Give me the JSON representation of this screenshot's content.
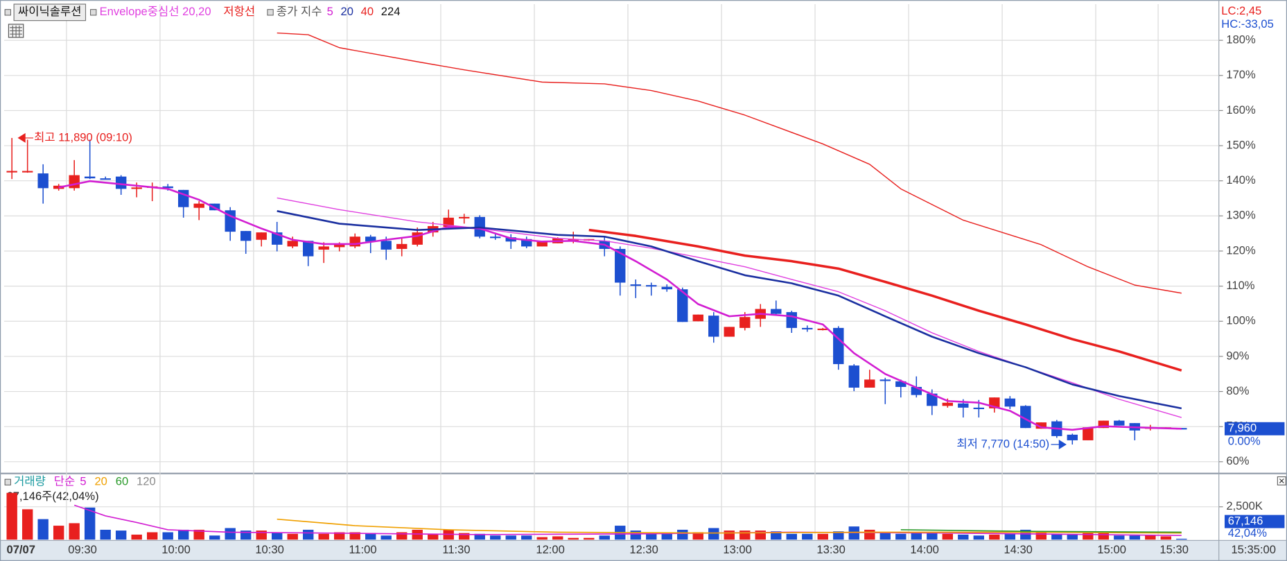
{
  "chart_data": [
    {
      "type": "candlestick",
      "title": "싸이닉솔루션",
      "ma_legend_label": "종가 지수",
      "lc_label": "LC:2,45",
      "hc_label": "HC:-33,05",
      "last_price_label": "7,960",
      "last_change_label": "0.00%",
      "last_time": "15:35:00",
      "up_color": "#e8201e",
      "down_color": "#1c4fd0",
      "grid": true,
      "categories": [
        "07/07",
        null,
        null,
        null,
        "09:30",
        null,
        null,
        null,
        null,
        null,
        "10:00",
        null,
        null,
        null,
        null,
        null,
        "10:30",
        null,
        null,
        null,
        null,
        null,
        "11:00",
        null,
        null,
        null,
        null,
        null,
        "11:30",
        null,
        null,
        null,
        null,
        null,
        "12:00",
        null,
        null,
        null,
        null,
        null,
        "12:30",
        null,
        null,
        null,
        null,
        null,
        "13:00",
        null,
        null,
        null,
        null,
        null,
        "13:30",
        null,
        null,
        null,
        null,
        null,
        "14:00",
        null,
        null,
        null,
        null,
        null,
        "14:30",
        null,
        null,
        null,
        null,
        null,
        "15:00",
        null,
        null,
        null,
        "15:30",
        null
      ],
      "open": [
        142.8,
        142.8,
        142.1,
        137.7,
        137.9,
        141.2,
        140.7,
        141.2,
        137.9,
        138.1,
        138.4,
        137.4,
        132.3,
        133.5,
        131.6,
        125.7,
        123.2,
        125.3,
        121.3,
        122.9,
        120.4,
        121.1,
        121.3,
        124.1,
        122.9,
        120.6,
        121.8,
        125.3,
        126.9,
        129.5,
        129.7,
        124.1,
        123.9,
        123.4,
        121.3,
        122.2,
        123.2,
        123.2,
        122.9,
        120.6,
        110.5,
        110.3,
        109.8,
        109.1,
        100.0,
        101.6,
        95.6,
        98.1,
        100.7,
        103.5,
        102.6,
        98.1,
        97.7,
        98.1,
        87.4,
        81.1,
        83.4,
        82.9,
        81.3,
        79.4,
        75.9,
        76.6,
        75.4,
        75.2,
        78.0,
        75.9,
        69.4,
        71.5,
        67.7,
        66.1,
        69.6,
        71.7,
        71.0,
        69.6,
        69.6,
        69.6
      ],
      "high": [
        152.2,
        151.7,
        144.7,
        139.1,
        145.9,
        151.7,
        141.2,
        141.6,
        139.5,
        139.5,
        139.1,
        137.4,
        134.2,
        133.5,
        132.5,
        125.7,
        125.3,
        128.3,
        124.1,
        122.9,
        122.5,
        122.5,
        125.0,
        124.6,
        124.1,
        123.6,
        126.7,
        128.3,
        131.8,
        130.6,
        130.2,
        124.8,
        124.8,
        124.1,
        122.7,
        123.9,
        125.5,
        123.4,
        124.1,
        121.3,
        111.9,
        111.0,
        110.5,
        109.6,
        101.9,
        102.6,
        98.4,
        102.6,
        104.9,
        105.9,
        103.0,
        98.8,
        98.1,
        98.6,
        87.8,
        86.2,
        83.9,
        83.4,
        84.3,
        80.6,
        78.0,
        77.8,
        77.6,
        78.3,
        78.7,
        76.1,
        71.2,
        71.9,
        68.0,
        69.8,
        71.7,
        71.9,
        71.0,
        70.5,
        69.8,
        69.6
      ],
      "low": [
        140.5,
        142.3,
        133.5,
        137.2,
        137.2,
        140.5,
        140.5,
        136.0,
        135.3,
        134.2,
        137.2,
        129.5,
        128.8,
        131.6,
        122.9,
        119.2,
        121.3,
        119.9,
        120.8,
        115.7,
        116.6,
        119.9,
        120.8,
        119.4,
        117.5,
        118.5,
        121.3,
        124.1,
        126.4,
        127.8,
        123.6,
        123.2,
        120.6,
        120.8,
        121.3,
        122.2,
        122.2,
        122.9,
        118.5,
        107.3,
        106.6,
        107.3,
        108.4,
        99.8,
        100.0,
        93.9,
        95.6,
        97.4,
        98.4,
        101.9,
        96.7,
        97.0,
        97.4,
        86.2,
        80.1,
        81.1,
        76.4,
        78.3,
        78.3,
        73.3,
        75.4,
        72.6,
        72.6,
        74.0,
        75.0,
        69.6,
        69.4,
        66.8,
        64.9,
        66.1,
        69.6,
        70.3,
        66.1,
        68.9,
        69.4,
        69.4
      ],
      "close": [
        142.8,
        142.8,
        137.9,
        138.6,
        141.6,
        140.7,
        140.5,
        137.7,
        138.1,
        138.4,
        137.9,
        132.5,
        133.5,
        131.6,
        125.5,
        122.9,
        125.3,
        121.8,
        122.9,
        118.5,
        121.3,
        122.0,
        124.1,
        122.7,
        120.4,
        122.0,
        125.3,
        127.1,
        129.5,
        129.7,
        124.1,
        123.9,
        122.7,
        121.3,
        122.7,
        123.6,
        123.4,
        123.4,
        120.6,
        111.0,
        110.3,
        110.1,
        109.1,
        99.8,
        101.9,
        95.6,
        98.4,
        101.2,
        103.5,
        102.1,
        98.1,
        97.9,
        97.9,
        87.8,
        81.1,
        83.4,
        83.2,
        81.3,
        79.0,
        75.9,
        76.8,
        75.4,
        75.2,
        78.3,
        75.7,
        69.6,
        71.2,
        67.3,
        66.1,
        69.8,
        71.7,
        70.3,
        68.9,
        69.8,
        69.8,
        69.4
      ],
      "series": [
        {
          "name": "Envelope중심선 20,20",
          "color": "#e040e0",
          "style": "thin",
          "marker": true,
          "x": [
            17,
            21,
            26,
            30,
            35,
            38,
            41,
            44,
            47,
            50,
            53,
            56,
            59,
            62,
            65,
            68,
            71,
            75
          ],
          "values": [
            135.1,
            131.8,
            128.3,
            126.4,
            123.6,
            122.9,
            120.8,
            118.2,
            115.5,
            111.9,
            108.4,
            103.0,
            96.7,
            91.4,
            86.9,
            82.5,
            77.8,
            72.6
          ]
        },
        {
          "name": "저항선",
          "color": "#e8201e",
          "style": "thin",
          "marker": false,
          "x": [
            17,
            19,
            21,
            26,
            29,
            34,
            38,
            41,
            44,
            47,
            52,
            55,
            57,
            61,
            66,
            69,
            72,
            75
          ],
          "values": [
            182.1,
            181.6,
            177.9,
            173.9,
            171.6,
            168.1,
            167.6,
            165.7,
            162.7,
            158.7,
            150.5,
            144.7,
            137.7,
            128.8,
            121.8,
            115.5,
            110.3,
            108.0
          ]
        },
        {
          "name": "5",
          "color": "#d21ed2",
          "style": "thick",
          "marker": false,
          "x": [
            3,
            5,
            8,
            10,
            12,
            14,
            16,
            18,
            20,
            22,
            24,
            26,
            28,
            30,
            32,
            34,
            36,
            38,
            40,
            42,
            44,
            46,
            48,
            50,
            52,
            54,
            56,
            58,
            60,
            62,
            64,
            66,
            68,
            70,
            72,
            75
          ],
          "values": [
            138.1,
            139.9,
            138.6,
            137.7,
            134.6,
            130.0,
            126.4,
            123.2,
            122.0,
            122.0,
            123.2,
            124.3,
            126.9,
            126.4,
            123.6,
            122.7,
            122.9,
            121.8,
            117.1,
            111.9,
            104.9,
            101.4,
            102.1,
            101.4,
            99.1,
            90.9,
            85.0,
            81.1,
            77.3,
            76.8,
            74.5,
            69.8,
            69.1,
            70.1,
            69.8,
            69.4
          ]
        },
        {
          "name": "20",
          "color": "#1a2fa0",
          "style": "thick",
          "marker": false,
          "x": [
            17,
            21,
            26,
            30,
            35,
            38,
            41,
            44,
            47,
            50,
            53,
            56,
            59,
            62,
            65,
            68,
            71,
            75
          ],
          "values": [
            131.4,
            127.8,
            126.0,
            126.7,
            124.6,
            124.1,
            121.3,
            117.1,
            113.1,
            110.8,
            107.3,
            101.4,
            95.6,
            90.9,
            86.9,
            82.0,
            78.7,
            75.2
          ]
        },
        {
          "name": "40",
          "color": "#e8201e",
          "style": "bold",
          "marker": false,
          "x": [
            37,
            40,
            44,
            47,
            50,
            53,
            56,
            59,
            62,
            65,
            68,
            71,
            75
          ],
          "values": [
            126.0,
            124.3,
            121.3,
            118.7,
            117.1,
            115.0,
            111.2,
            107.3,
            103.0,
            99.1,
            94.9,
            91.4,
            86.0
          ]
        },
        {
          "name": "224",
          "color": "#111111",
          "style": "thin",
          "marker": false,
          "x": [],
          "values": []
        }
      ],
      "annotations": [
        {
          "text": "최고 11,890 (09:10)",
          "x": 0,
          "y": 152.2,
          "side": "right",
          "color": "#e8201e"
        },
        {
          "text": "최저 7,770 (14:50)",
          "x": 68,
          "y": 64.9,
          "side": "left",
          "color": "#1c4fd0"
        }
      ],
      "ylim": [
        57,
        190.3
      ],
      "yticks": [
        {
          "value": 60,
          "label": "60%"
        },
        {
          "value": 70,
          "label": "70%"
        },
        {
          "value": 80,
          "label": "80%"
        },
        {
          "value": 90,
          "label": "90%"
        },
        {
          "value": 100,
          "label": "100%"
        },
        {
          "value": 110,
          "label": "110%"
        },
        {
          "value": 120,
          "label": "120%"
        },
        {
          "value": 130,
          "label": "130%"
        },
        {
          "value": 140,
          "label": "140%"
        },
        {
          "value": 150,
          "label": "150%"
        },
        {
          "value": 160,
          "label": "160%"
        },
        {
          "value": 170,
          "label": "170%"
        },
        {
          "value": 180,
          "label": "180%"
        }
      ]
    },
    {
      "type": "bar",
      "title": "거래량",
      "title_color": "#1a9aa0",
      "ma_legend_label": "단순",
      "ma_legend_color": "#d21ed2",
      "header_label": "67,146주(42,04%)",
      "last_volume_label": "67,146",
      "last_ratio_label": "42,04%",
      "grid": true,
      "values": [
        3560,
        2310,
        1560,
        1060,
        1250,
        2440,
        750,
        690,
        380,
        560,
        560,
        750,
        750,
        310,
        880,
        690,
        690,
        560,
        440,
        750,
        440,
        560,
        560,
        500,
        310,
        560,
        750,
        440,
        750,
        500,
        440,
        310,
        310,
        310,
        190,
        250,
        130,
        130,
        310,
        1060,
        690,
        560,
        440,
        750,
        560,
        880,
        690,
        690,
        690,
        630,
        440,
        440,
        440,
        630,
        1000,
        750,
        560,
        440,
        560,
        560,
        440,
        380,
        310,
        380,
        440,
        750,
        560,
        440,
        380,
        500,
        500,
        310,
        310,
        310,
        250,
        67.146
      ],
      "series": [
        {
          "name": "5",
          "color": "#d21ed2",
          "x": [
            4,
            6,
            8,
            10,
            14,
            20,
            30,
            40,
            50,
            60,
            75
          ],
          "values": [
            2620,
            1810,
            1310,
            750,
            560,
            500,
            380,
            440,
            560,
            500,
            310
          ]
        },
        {
          "name": "20",
          "color": "#f0a000",
          "x": [
            17,
            22,
            28,
            35,
            45,
            55,
            65,
            75
          ],
          "values": [
            1560,
            1060,
            750,
            560,
            500,
            560,
            560,
            500
          ]
        },
        {
          "name": "60",
          "color": "#2a9a2a",
          "x": [
            57,
            65,
            75
          ],
          "values": [
            750,
            630,
            560
          ]
        },
        {
          "name": "120",
          "color": "#8a8a8a",
          "x": [],
          "values": []
        }
      ],
      "ylim": [
        0,
        4940
      ],
      "yticks": [
        {
          "value": 2500,
          "label": "2,500K"
        }
      ]
    }
  ]
}
